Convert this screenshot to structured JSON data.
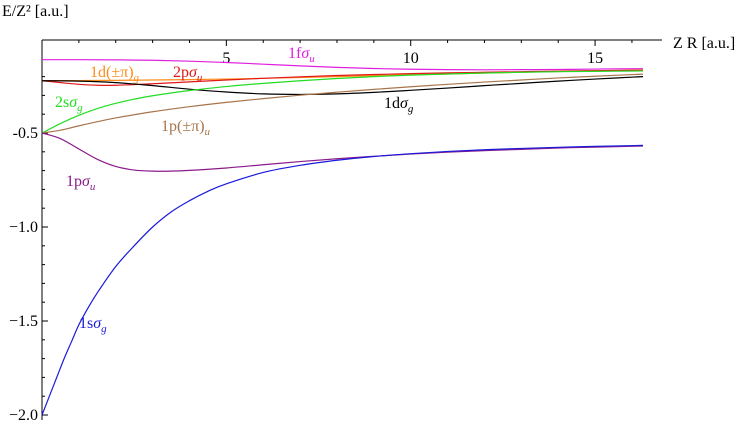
{
  "chart_data": {
    "type": "line",
    "title": "",
    "xlabel": "Z R [a.u.]",
    "ylabel": "E/Z² [a.u.]",
    "xlim": [
      0,
      16.3
    ],
    "ylim": [
      -2.0,
      -0.05
    ],
    "x_ticks": [
      5,
      10,
      15
    ],
    "y_ticks": [
      -0.5,
      -1.0,
      -1.5,
      -2.0
    ],
    "x_tick_labels": [
      "5",
      "10",
      "15"
    ],
    "y_tick_labels": [
      "-0.5",
      "−1.0",
      "−1.5",
      "−2.0"
    ],
    "grid": false,
    "series": [
      {
        "name": "1fσu",
        "label_parts": [
          "1f",
          "σ",
          "u"
        ],
        "color": "#e020e0",
        "x": [
          0,
          1,
          2,
          3,
          4,
          5,
          6,
          7,
          8,
          9,
          10,
          11,
          12,
          13,
          14,
          15,
          16.3
        ],
        "y": [
          -0.11,
          -0.11,
          -0.111,
          -0.113,
          -0.118,
          -0.125,
          -0.134,
          -0.143,
          -0.151,
          -0.157,
          -0.161,
          -0.163,
          -0.164,
          -0.163,
          -0.162,
          -0.16,
          -0.158
        ]
      },
      {
        "name": "1d(±π)g",
        "label_parts": [
          "1d(±π)",
          "",
          "g"
        ],
        "color": "#ff8c1a",
        "x": [
          0,
          1,
          2,
          3,
          4,
          5,
          6,
          7,
          8,
          9,
          10,
          11,
          12,
          13,
          14,
          15,
          16.3
        ],
        "y": [
          -0.222,
          -0.221,
          -0.22,
          -0.218,
          -0.216,
          -0.213,
          -0.209,
          -0.205,
          -0.2,
          -0.195,
          -0.19,
          -0.186,
          -0.181,
          -0.177,
          -0.173,
          -0.169,
          -0.165
        ]
      },
      {
        "name": "2pσu",
        "label_parts": [
          "2p",
          "σ",
          "u"
        ],
        "color": "#e01818",
        "x": [
          0,
          0.5,
          1,
          1.5,
          2,
          3,
          4,
          5,
          6,
          7,
          8,
          9,
          10,
          11,
          12,
          13,
          14,
          15,
          16.3
        ],
        "y": [
          -0.222,
          -0.232,
          -0.241,
          -0.246,
          -0.246,
          -0.238,
          -0.228,
          -0.218,
          -0.209,
          -0.201,
          -0.194,
          -0.189,
          -0.184,
          -0.18,
          -0.177,
          -0.174,
          -0.171,
          -0.169,
          -0.167
        ]
      },
      {
        "name": "1dσg",
        "label_parts": [
          "1d",
          "σ",
          "g"
        ],
        "color": "#000000",
        "x": [
          0,
          1,
          2,
          3,
          4,
          5,
          6,
          7,
          8,
          9,
          10,
          11,
          12,
          13,
          14,
          15,
          16.3
        ],
        "y": [
          -0.222,
          -0.224,
          -0.232,
          -0.248,
          -0.267,
          -0.282,
          -0.292,
          -0.295,
          -0.292,
          -0.284,
          -0.273,
          -0.261,
          -0.248,
          -0.236,
          -0.224,
          -0.213,
          -0.2
        ]
      },
      {
        "name": "2sσg",
        "label_parts": [
          "2s",
          "σ",
          "g"
        ],
        "color": "#22dd22",
        "x": [
          0,
          0.5,
          1,
          1.5,
          2,
          2.5,
          3,
          4,
          5,
          6,
          7,
          8,
          9,
          10,
          11,
          12,
          13,
          14,
          15,
          16.3
        ],
        "y": [
          -0.5,
          -0.45,
          -0.406,
          -0.37,
          -0.342,
          -0.32,
          -0.302,
          -0.274,
          -0.253,
          -0.236,
          -0.222,
          -0.21,
          -0.2,
          -0.192,
          -0.186,
          -0.181,
          -0.177,
          -0.174,
          -0.172,
          -0.17
        ]
      },
      {
        "name": "1p(±π)u",
        "label_parts": [
          "1p(±π)",
          "",
          "u"
        ],
        "color": "#a8744a",
        "x": [
          0,
          0.5,
          1,
          1.5,
          2,
          3,
          4,
          5,
          6,
          7,
          8,
          9,
          10,
          11,
          12,
          13,
          14,
          15,
          16.3
        ],
        "y": [
          -0.5,
          -0.485,
          -0.462,
          -0.44,
          -0.42,
          -0.387,
          -0.36,
          -0.337,
          -0.317,
          -0.299,
          -0.283,
          -0.268,
          -0.254,
          -0.241,
          -0.229,
          -0.218,
          -0.207,
          -0.198,
          -0.187
        ]
      },
      {
        "name": "1pσu",
        "label_parts": [
          "1p",
          "σ",
          "u"
        ],
        "color": "#8b1a8b",
        "x": [
          0,
          0.5,
          1,
          1.5,
          2,
          2.5,
          3,
          3.5,
          4,
          5,
          6,
          7,
          8,
          9,
          10,
          11,
          12,
          13,
          14,
          15,
          16.3
        ],
        "y": [
          -0.5,
          -0.53,
          -0.585,
          -0.64,
          -0.678,
          -0.697,
          -0.703,
          -0.703,
          -0.699,
          -0.686,
          -0.669,
          -0.652,
          -0.637,
          -0.624,
          -0.612,
          -0.602,
          -0.594,
          -0.587,
          -0.58,
          -0.575,
          -0.569
        ]
      },
      {
        "name": "1sσg",
        "label_parts": [
          "1s",
          "σ",
          "g"
        ],
        "color": "#1a1adb",
        "x": [
          0,
          0.2,
          0.4,
          0.6,
          0.8,
          1,
          1.25,
          1.5,
          2,
          2.5,
          3,
          3.5,
          4,
          4.5,
          5,
          6,
          7,
          8,
          9,
          10,
          11,
          12,
          13,
          14,
          15,
          16.3
        ],
        "y": [
          -2.0,
          -1.9,
          -1.8,
          -1.7,
          -1.61,
          -1.52,
          -1.43,
          -1.35,
          -1.21,
          -1.1,
          -1.0,
          -0.92,
          -0.86,
          -0.81,
          -0.77,
          -0.71,
          -0.672,
          -0.645,
          -0.625,
          -0.61,
          -0.598,
          -0.589,
          -0.582,
          -0.576,
          -0.571,
          -0.566
        ]
      }
    ]
  }
}
